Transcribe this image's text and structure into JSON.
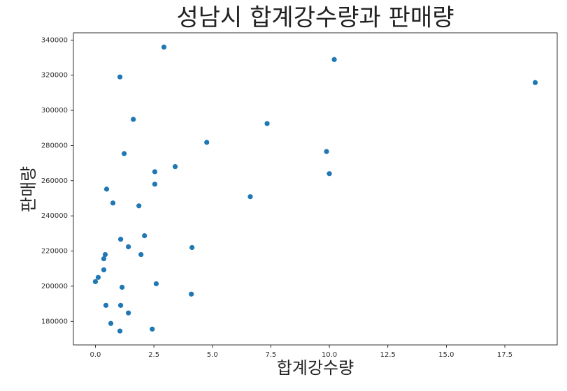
{
  "chart_data": {
    "type": "scatter",
    "title": "성남시 합계강수량과 판매량",
    "x_label": "합계강수량",
    "y_label": "판매량",
    "series": [
      {
        "color": "#1f77b4",
        "x": [
          2.93,
          10.21,
          18.8,
          1.05,
          1.62,
          7.34,
          4.76,
          9.88,
          1.23,
          3.41,
          2.54,
          10.0,
          2.54,
          0.48,
          6.62,
          0.75,
          1.86,
          2.1,
          1.08,
          1.41,
          4.13,
          0.42,
          1.95,
          0.36,
          0.36,
          0.12,
          0.0,
          2.6,
          1.14,
          4.1,
          0.45,
          1.08,
          1.41,
          0.66,
          2.43,
          1.05
        ],
        "values": [
          336000,
          328900,
          315800,
          319000,
          294900,
          292500,
          281800,
          276600,
          275400,
          268000,
          265100,
          264000,
          258000,
          255200,
          250900,
          247300,
          245700,
          228700,
          226700,
          222400,
          222000,
          218000,
          218000,
          215600,
          209300,
          205000,
          202600,
          201400,
          199400,
          195500,
          189100,
          189100,
          184800,
          178800,
          175600,
          174500
        ]
      }
    ],
    "xlim": [
      -0.94,
      19.74
    ],
    "xticks": [
      {
        "value": 0,
        "label": "0.0"
      },
      {
        "value": 2.5,
        "label": "2.5"
      },
      {
        "value": 5,
        "label": "5.0"
      },
      {
        "value": 7.5,
        "label": "7.5"
      },
      {
        "value": 10,
        "label": "10.0"
      },
      {
        "value": 12.5,
        "label": "12.5"
      },
      {
        "value": 15,
        "label": "15.0"
      },
      {
        "value": 17.5,
        "label": "17.5"
      }
    ],
    "ylim": [
      166600,
      344100
    ],
    "yticks": [
      180000,
      200000,
      220000,
      240000,
      260000,
      280000,
      300000,
      320000,
      340000
    ],
    "grid": false
  }
}
